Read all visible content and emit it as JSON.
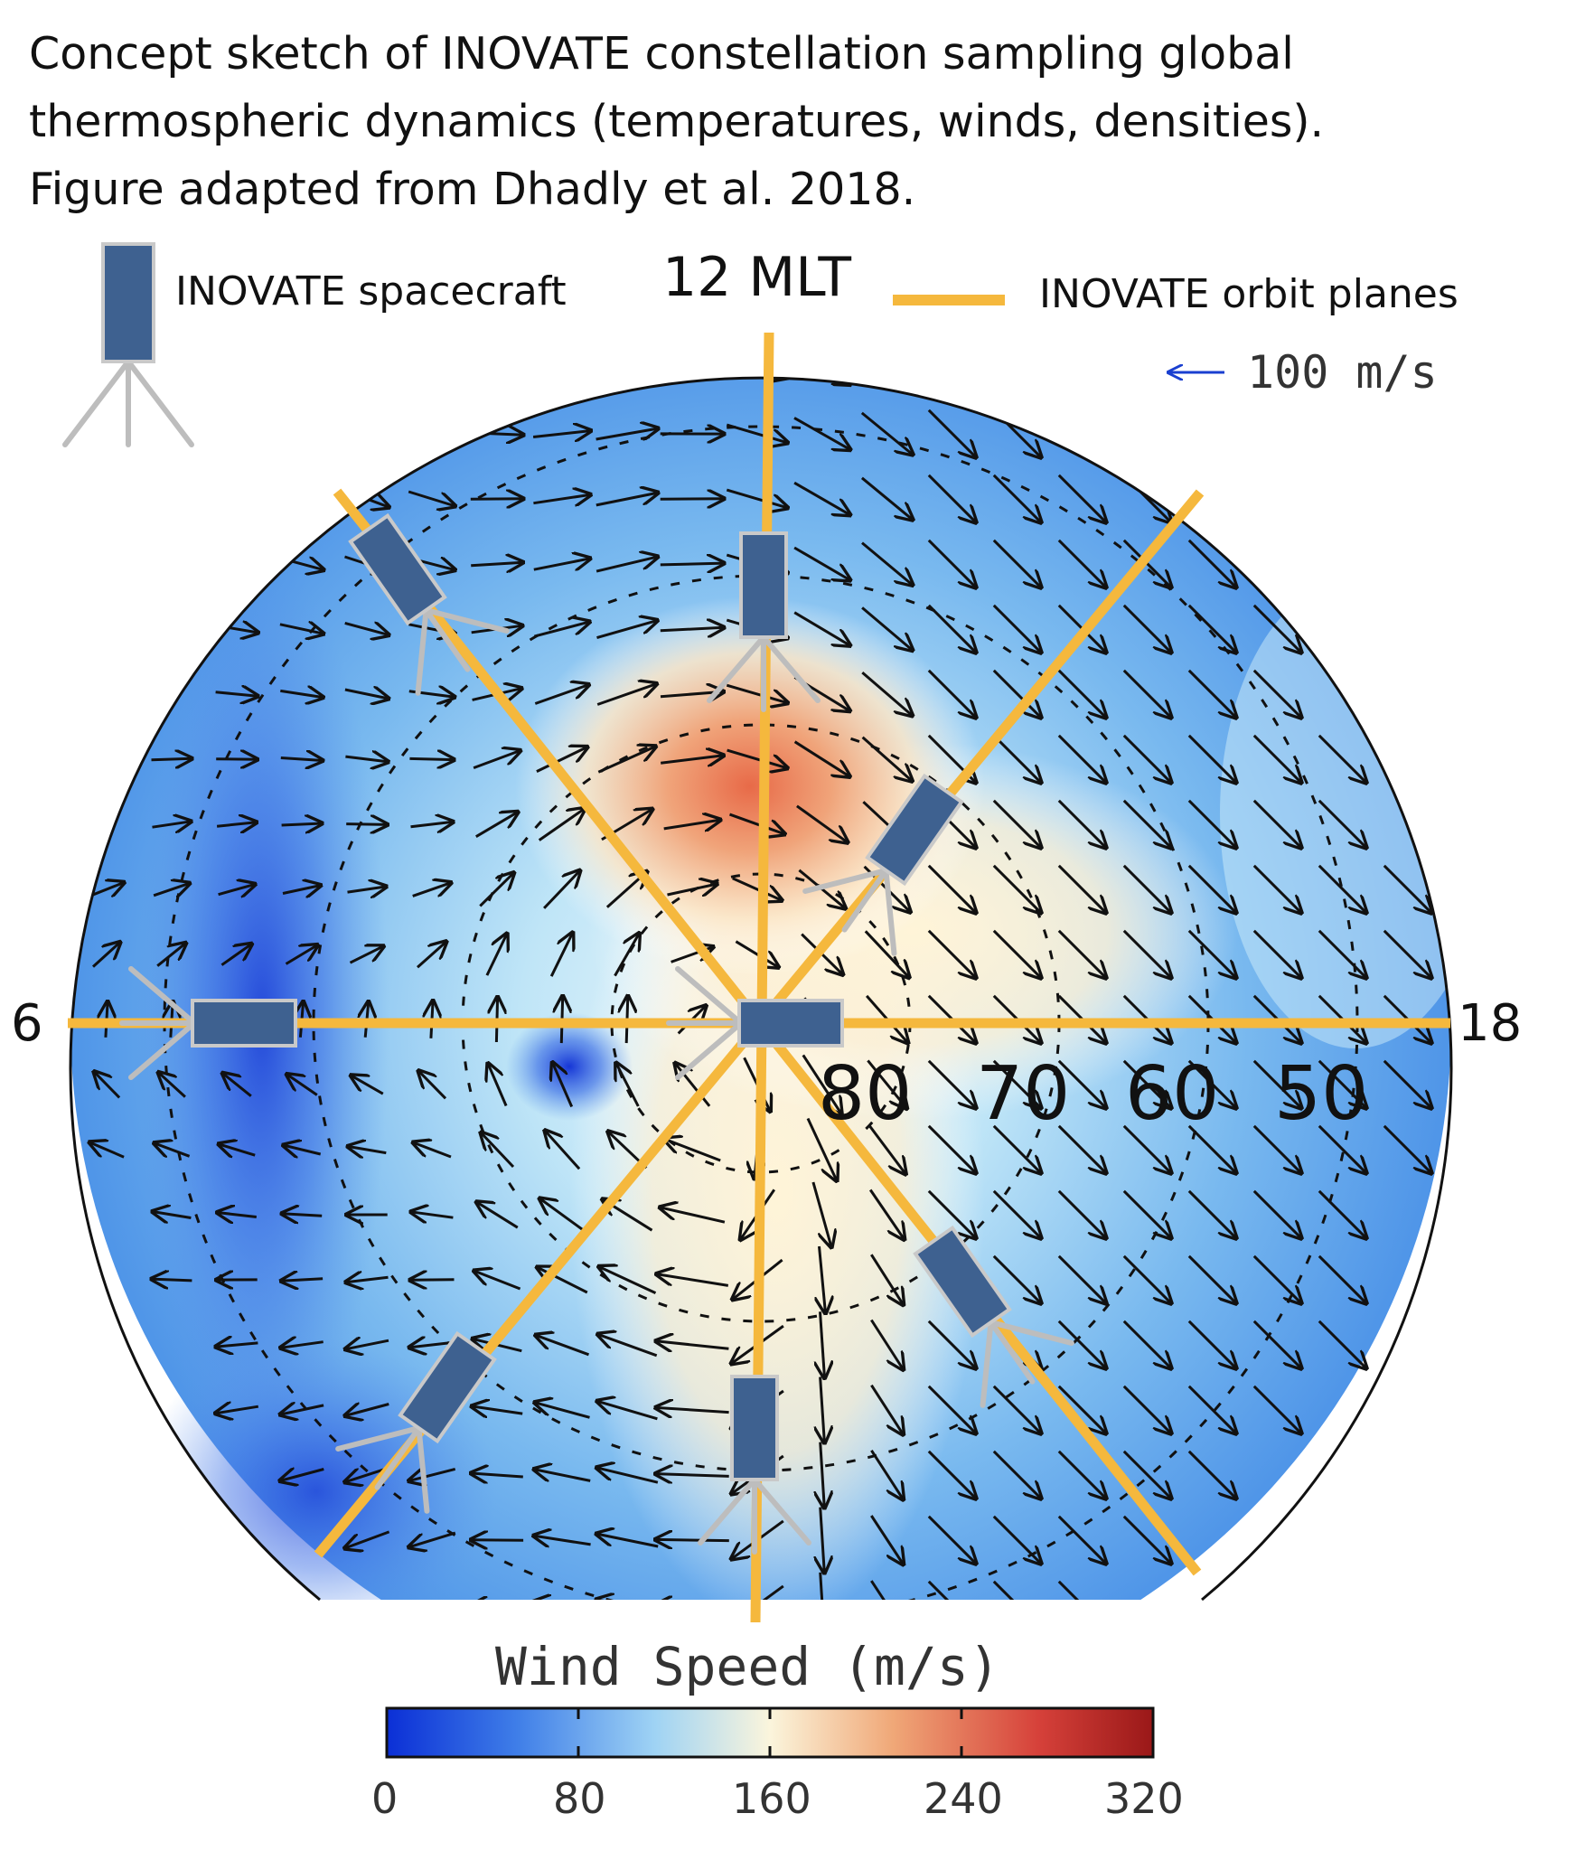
{
  "caption": {
    "line1": "Concept sketch of INOVATE constellation sampling global",
    "line2": "thermospheric dynamics (temperatures, winds, densities).",
    "line3": "Figure adapted from Dhadly et al. 2018."
  },
  "legend": {
    "spacecraft_label": "INOVATE spacecraft",
    "orbit_label": "INOVATE orbit planes",
    "orbit_color": "#f5b83d",
    "spacecraft_color": "#3e6190",
    "vector_scale_label": "100 m/s",
    "vector_scale_color": "#1a3fd0"
  },
  "polar_plot": {
    "top_label": "12 MLT",
    "left_label": "6",
    "right_label": "18",
    "latitude_labels": [
      "80",
      "70",
      "60",
      "50"
    ]
  },
  "colorbar": {
    "title": "Wind Speed (m/s)",
    "ticks": [
      "0",
      "80",
      "160",
      "240",
      "320"
    ],
    "colors": [
      "#0b2fd6",
      "#3f7ee8",
      "#9fd3f4",
      "#fbf5dc",
      "#f0a878",
      "#d6413a",
      "#9a1818"
    ]
  }
}
